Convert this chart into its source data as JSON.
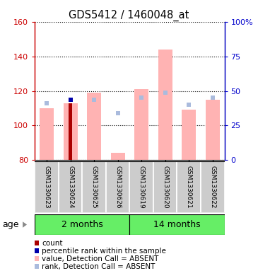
{
  "title": "GDS5412 / 1460048_at",
  "samples": [
    "GSM1330623",
    "GSM1330624",
    "GSM1330625",
    "GSM1330626",
    "GSM1330619",
    "GSM1330620",
    "GSM1330621",
    "GSM1330622"
  ],
  "groups": [
    {
      "label": "2 months",
      "indices": [
        0,
        1,
        2,
        3
      ]
    },
    {
      "label": "14 months",
      "indices": [
        4,
        5,
        6,
        7
      ]
    }
  ],
  "ylim_left": [
    80,
    160
  ],
  "ylim_right": [
    0,
    100
  ],
  "pink_bar_bottom": 80,
  "pink_bar_top": [
    110,
    113,
    119,
    84,
    121,
    144,
    109,
    115
  ],
  "blue_square_y": [
    113,
    115,
    115,
    107,
    116,
    119,
    112,
    116
  ],
  "has_red_bar": [
    false,
    true,
    false,
    false,
    false,
    false,
    false,
    false
  ],
  "red_bar_top": [
    0,
    113,
    0,
    0,
    0,
    0,
    0,
    0
  ],
  "has_blue_pct": [
    false,
    true,
    false,
    false,
    false,
    false,
    false,
    false
  ],
  "blue_pct_y": [
    0,
    115,
    0,
    0,
    0,
    0,
    0,
    0
  ],
  "pink_color": "#FFB3B3",
  "light_blue_color": "#AABBDD",
  "red_color": "#AA0000",
  "blue_color": "#0000AA",
  "group_color": "#66EE66",
  "sample_bg_color": "#CCCCCC",
  "left_axis_color": "#CC0000",
  "right_axis_color": "#0000CC",
  "legend_items": [
    {
      "color": "#AA0000",
      "label": "count"
    },
    {
      "color": "#0000AA",
      "label": "percentile rank within the sample"
    },
    {
      "color": "#FFB3B3",
      "label": "value, Detection Call = ABSENT"
    },
    {
      "color": "#AABBDD",
      "label": "rank, Detection Call = ABSENT"
    }
  ]
}
